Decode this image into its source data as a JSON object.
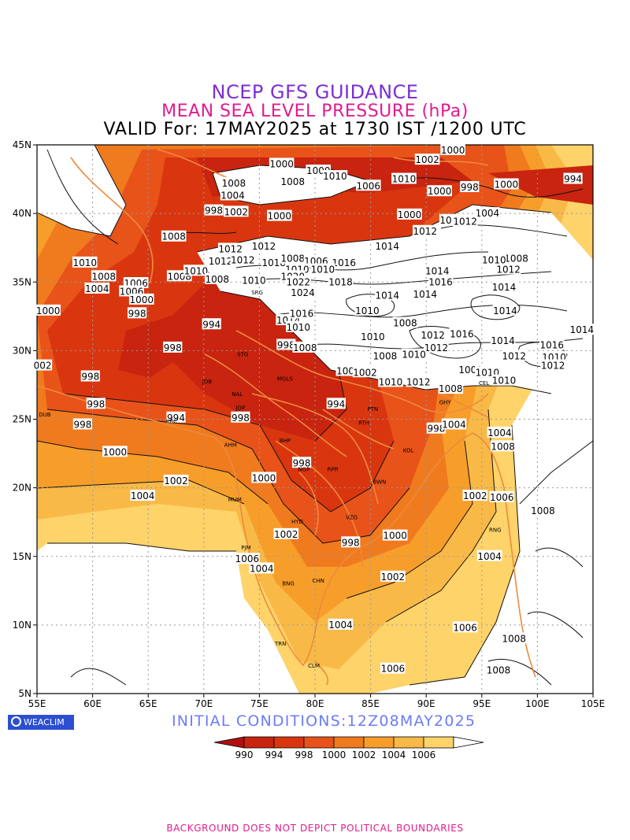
{
  "title_line1": "NCEP GFS GUIDANCE",
  "title_line2": "MEAN SEA LEVEL PRESSURE (hPa)",
  "title_line3": "VALID For: 17MAY2025 at 1730 IST /1200 UTC",
  "initial_conditions": "INITIAL CONDITIONS:12Z08MAY2025",
  "brand": "WEACLIM",
  "footer_note": "BACKGROUND DOES NOT DEPICT POLITICAL BOUNDARIES",
  "colors": {
    "title1": "#7b2fd6",
    "title2": "#e21c8c",
    "init": "#6b7df5",
    "footer": "#e21c8c",
    "levels": [
      "#b00f0f",
      "#c8240f",
      "#d9360f",
      "#e8531a",
      "#f07a1e",
      "#f79e2a",
      "#f9b947",
      "#fdd36a",
      "#ffffff"
    ]
  },
  "axes": {
    "lon_labels": [
      "55E",
      "60E",
      "65E",
      "70E",
      "75E",
      "80E",
      "85E",
      "90E",
      "95E",
      "100E",
      "105E"
    ],
    "lat_labels": [
      "45N",
      "40N",
      "35N",
      "30N",
      "25N",
      "20N",
      "15N",
      "10N",
      "5N"
    ]
  },
  "legend": {
    "labels": [
      "990",
      "994",
      "998",
      "1000",
      "1002",
      "1004",
      "1006"
    ]
  },
  "contour_labels": [
    {
      "t": "1000",
      "lon": 92.4,
      "lat": 44.6
    },
    {
      "t": "1002",
      "lon": 90.1,
      "lat": 43.9
    },
    {
      "t": "1000",
      "lon": 77.0,
      "lat": 43.6
    },
    {
      "t": "1000",
      "lon": 80.3,
      "lat": 43.1
    },
    {
      "t": "1010",
      "lon": 81.8,
      "lat": 42.7
    },
    {
      "t": "1010",
      "lon": 88.0,
      "lat": 42.5
    },
    {
      "t": "1008",
      "lon": 72.7,
      "lat": 42.2
    },
    {
      "t": "1008",
      "lon": 78.0,
      "lat": 42.3
    },
    {
      "t": "1006",
      "lon": 84.8,
      "lat": 42.0
    },
    {
      "t": "998",
      "lon": 93.9,
      "lat": 41.9
    },
    {
      "t": "1000",
      "lon": 97.2,
      "lat": 42.1
    },
    {
      "t": "994",
      "lon": 103.2,
      "lat": 42.5
    },
    {
      "t": "1004",
      "lon": 72.6,
      "lat": 41.3
    },
    {
      "t": "1000",
      "lon": 91.2,
      "lat": 41.6
    },
    {
      "t": "998",
      "lon": 70.9,
      "lat": 40.2
    },
    {
      "t": "1002",
      "lon": 72.9,
      "lat": 40.1
    },
    {
      "t": "1000",
      "lon": 76.8,
      "lat": 39.8
    },
    {
      "t": "1000",
      "lon": 88.5,
      "lat": 39.9
    },
    {
      "t": "1004",
      "lon": 95.5,
      "lat": 40.0
    },
    {
      "t": "1010",
      "lon": 92.3,
      "lat": 39.5
    },
    {
      "t": "1012",
      "lon": 93.5,
      "lat": 39.4
    },
    {
      "t": "1008",
      "lon": 67.3,
      "lat": 38.3
    },
    {
      "t": "1012",
      "lon": 89.9,
      "lat": 38.7
    },
    {
      "t": "1012",
      "lon": 72.4,
      "lat": 37.4
    },
    {
      "t": "1012",
      "lon": 75.4,
      "lat": 37.6
    },
    {
      "t": "1014",
      "lon": 86.5,
      "lat": 37.6
    },
    {
      "t": "1010",
      "lon": 59.3,
      "lat": 36.4
    },
    {
      "t": "1012",
      "lon": 71.5,
      "lat": 36.5
    },
    {
      "t": "1012",
      "lon": 73.5,
      "lat": 36.6
    },
    {
      "t": "1018",
      "lon": 76.3,
      "lat": 36.4
    },
    {
      "t": "1008",
      "lon": 78.0,
      "lat": 36.7
    },
    {
      "t": "1016",
      "lon": 82.6,
      "lat": 36.4
    },
    {
      "t": "1006",
      "lon": 80.1,
      "lat": 36.5
    },
    {
      "t": "1010",
      "lon": 78.4,
      "lat": 35.9
    },
    {
      "t": "1010",
      "lon": 80.7,
      "lat": 35.9
    },
    {
      "t": "1014",
      "lon": 91.0,
      "lat": 35.8
    },
    {
      "t": "1008",
      "lon": 98.1,
      "lat": 36.7
    },
    {
      "t": "1010",
      "lon": 96.1,
      "lat": 36.6
    },
    {
      "t": "1012",
      "lon": 97.4,
      "lat": 35.9
    },
    {
      "t": "1008",
      "lon": 61.0,
      "lat": 35.4
    },
    {
      "t": "1006",
      "lon": 63.9,
      "lat": 34.9
    },
    {
      "t": "1008",
      "lon": 67.8,
      "lat": 35.4
    },
    {
      "t": "1010",
      "lon": 69.3,
      "lat": 35.8
    },
    {
      "t": "1008",
      "lon": 71.2,
      "lat": 35.2
    },
    {
      "t": "1020",
      "lon": 78.0,
      "lat": 35.4
    },
    {
      "t": "1022",
      "lon": 78.5,
      "lat": 35.0
    },
    {
      "t": "1018",
      "lon": 82.3,
      "lat": 35.0
    },
    {
      "t": "1016",
      "lon": 91.3,
      "lat": 35.0
    },
    {
      "t": "1014",
      "lon": 97.0,
      "lat": 34.6
    },
    {
      "t": "1010",
      "lon": 74.5,
      "lat": 35.1
    },
    {
      "t": "1004",
      "lon": 60.4,
      "lat": 34.5
    },
    {
      "t": "1006",
      "lon": 63.5,
      "lat": 34.3
    },
    {
      "t": "1024",
      "lon": 78.9,
      "lat": 34.2
    },
    {
      "t": "1014",
      "lon": 86.5,
      "lat": 34.0
    },
    {
      "t": "1014",
      "lon": 89.9,
      "lat": 34.1
    },
    {
      "t": "1000",
      "lon": 64.4,
      "lat": 33.7
    },
    {
      "t": "1000",
      "lon": 56.0,
      "lat": 32.9
    },
    {
      "t": "998",
      "lon": 64.0,
      "lat": 32.7
    },
    {
      "t": "1010",
      "lon": 84.7,
      "lat": 32.9
    },
    {
      "t": "1014",
      "lon": 97.1,
      "lat": 32.9
    },
    {
      "t": "1014",
      "lon": 77.6,
      "lat": 32.2
    },
    {
      "t": "1016",
      "lon": 78.8,
      "lat": 32.7
    },
    {
      "t": "1008",
      "lon": 88.1,
      "lat": 32.0
    },
    {
      "t": "994",
      "lon": 70.7,
      "lat": 31.9
    },
    {
      "t": "1014",
      "lon": 104.0,
      "lat": 31.5
    },
    {
      "t": "1010",
      "lon": 78.5,
      "lat": 31.7
    },
    {
      "t": "1010",
      "lon": 85.2,
      "lat": 31.0
    },
    {
      "t": "1012",
      "lon": 90.6,
      "lat": 31.1
    },
    {
      "t": "1016",
      "lon": 93.2,
      "lat": 31.2
    },
    {
      "t": "1014",
      "lon": 96.9,
      "lat": 30.7
    },
    {
      "t": "1016",
      "lon": 101.3,
      "lat": 30.4
    },
    {
      "t": "998",
      "lon": 67.2,
      "lat": 30.2
    },
    {
      "t": "998",
      "lon": 77.4,
      "lat": 30.4
    },
    {
      "t": "1008",
      "lon": 79.1,
      "lat": 30.2
    },
    {
      "t": "1012",
      "lon": 90.9,
      "lat": 30.2
    },
    {
      "t": "1010",
      "lon": 88.9,
      "lat": 29.7
    },
    {
      "t": "1008",
      "lon": 86.3,
      "lat": 29.6
    },
    {
      "t": "1012",
      "lon": 97.9,
      "lat": 29.6
    },
    {
      "t": "1010",
      "lon": 101.5,
      "lat": 29.5
    },
    {
      "t": "1012",
      "lon": 101.4,
      "lat": 28.9
    },
    {
      "t": "002",
      "lon": 55.5,
      "lat": 28.9
    },
    {
      "t": "998",
      "lon": 59.8,
      "lat": 28.1
    },
    {
      "t": "1006",
      "lon": 83.0,
      "lat": 28.5
    },
    {
      "t": "1002",
      "lon": 84.5,
      "lat": 28.4
    },
    {
      "t": "1008",
      "lon": 94.0,
      "lat": 28.6
    },
    {
      "t": "1010",
      "lon": 95.5,
      "lat": 28.4
    },
    {
      "t": "1010",
      "lon": 97.0,
      "lat": 27.8
    },
    {
      "t": "1012",
      "lon": 89.3,
      "lat": 27.7
    },
    {
      "t": "1010",
      "lon": 86.8,
      "lat": 27.7
    },
    {
      "t": "1008",
      "lon": 92.2,
      "lat": 27.2
    },
    {
      "t": "998",
      "lon": 60.3,
      "lat": 26.1
    },
    {
      "t": "994",
      "lon": 81.9,
      "lat": 26.1
    },
    {
      "t": "994",
      "lon": 67.5,
      "lat": 25.1
    },
    {
      "t": "998",
      "lon": 73.3,
      "lat": 25.1
    },
    {
      "t": "998",
      "lon": 59.1,
      "lat": 24.6
    },
    {
      "t": "998",
      "lon": 90.9,
      "lat": 24.3
    },
    {
      "t": "1004",
      "lon": 92.5,
      "lat": 24.6
    },
    {
      "t": "1004",
      "lon": 96.6,
      "lat": 24.0
    },
    {
      "t": "1008",
      "lon": 96.9,
      "lat": 23.0
    },
    {
      "t": "1000",
      "lon": 62.0,
      "lat": 22.6
    },
    {
      "t": "998",
      "lon": 78.8,
      "lat": 21.8
    },
    {
      "t": "1000",
      "lon": 75.4,
      "lat": 20.7
    },
    {
      "t": "1002",
      "lon": 67.5,
      "lat": 20.5
    },
    {
      "t": "1004",
      "lon": 64.5,
      "lat": 19.4
    },
    {
      "t": "1002",
      "lon": 94.4,
      "lat": 19.4
    },
    {
      "t": "1006",
      "lon": 96.8,
      "lat": 19.3
    },
    {
      "t": "1008",
      "lon": 100.5,
      "lat": 18.3
    },
    {
      "t": "1002",
      "lon": 77.4,
      "lat": 16.6
    },
    {
      "t": "998",
      "lon": 83.2,
      "lat": 16.0
    },
    {
      "t": "1000",
      "lon": 87.2,
      "lat": 16.5
    },
    {
      "t": "1004",
      "lon": 95.7,
      "lat": 15.0
    },
    {
      "t": "1006",
      "lon": 73.9,
      "lat": 14.8
    },
    {
      "t": "1004",
      "lon": 75.2,
      "lat": 14.1
    },
    {
      "t": "1002",
      "lon": 87.0,
      "lat": 13.5
    },
    {
      "t": "1004",
      "lon": 82.3,
      "lat": 10.0
    },
    {
      "t": "1006",
      "lon": 93.5,
      "lat": 9.8
    },
    {
      "t": "1008",
      "lon": 97.9,
      "lat": 9.0
    },
    {
      "t": "1006",
      "lon": 87.0,
      "lat": 6.8
    },
    {
      "t": "1008",
      "lon": 96.5,
      "lat": 6.7
    }
  ],
  "city_labels": [
    {
      "t": "SRG",
      "lon": 74.8,
      "lat": 34.1
    },
    {
      "t": "STG",
      "lon": 73.5,
      "lat": 29.6
    },
    {
      "t": "JOB",
      "lon": 70.3,
      "lat": 27.6
    },
    {
      "t": "NAL",
      "lon": 73.0,
      "lat": 26.7
    },
    {
      "t": "MGLS",
      "lon": 77.3,
      "lat": 27.8
    },
    {
      "t": "JDP",
      "lon": 73.3,
      "lat": 25.7
    },
    {
      "t": "KRC",
      "lon": 67.1,
      "lat": 24.7
    },
    {
      "t": "DUB",
      "lon": 55.7,
      "lat": 25.2
    },
    {
      "t": "AHM",
      "lon": 72.4,
      "lat": 23.0
    },
    {
      "t": "BHP",
      "lon": 77.3,
      "lat": 23.3
    },
    {
      "t": "PTN",
      "lon": 85.2,
      "lat": 25.6
    },
    {
      "t": "RTH",
      "lon": 84.4,
      "lat": 24.6
    },
    {
      "t": "KOL",
      "lon": 88.4,
      "lat": 22.6
    },
    {
      "t": "NGP",
      "lon": 79.0,
      "lat": 21.2
    },
    {
      "t": "RPR",
      "lon": 81.6,
      "lat": 21.2
    },
    {
      "t": "BWN",
      "lon": 85.8,
      "lat": 20.3
    },
    {
      "t": "MUM",
      "lon": 72.8,
      "lat": 19.0
    },
    {
      "t": "HYD",
      "lon": 78.4,
      "lat": 17.4
    },
    {
      "t": "VZG",
      "lon": 83.3,
      "lat": 17.7
    },
    {
      "t": "PJM",
      "lon": 73.8,
      "lat": 15.5
    },
    {
      "t": "BNG",
      "lon": 77.6,
      "lat": 12.9
    },
    {
      "t": "CHN",
      "lon": 80.3,
      "lat": 13.1
    },
    {
      "t": "TRN",
      "lon": 76.9,
      "lat": 8.5
    },
    {
      "t": "CLM",
      "lon": 79.9,
      "lat": 6.9
    },
    {
      "t": "RNG",
      "lon": 96.2,
      "lat": 16.8
    },
    {
      "t": "GHY",
      "lon": 91.7,
      "lat": 26.1
    },
    {
      "t": "CEL",
      "lon": 95.2,
      "lat": 27.5
    }
  ]
}
